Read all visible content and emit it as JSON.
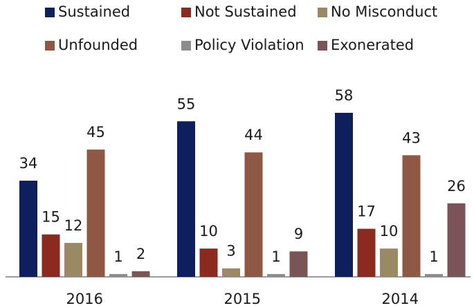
{
  "chart_data": {
    "type": "bar",
    "categories": [
      "2016",
      "2015",
      "2014"
    ],
    "series": [
      {
        "name": "Sustained",
        "color": "#0d1f5c",
        "values": [
          34,
          55,
          58
        ]
      },
      {
        "name": "Not Sustained",
        "color": "#8c2a1e",
        "values": [
          15,
          10,
          17
        ]
      },
      {
        "name": "No Misconduct",
        "color": "#9b8864",
        "values": [
          12,
          3,
          10
        ]
      },
      {
        "name": "Unfounded",
        "color": "#8f5845",
        "values": [
          45,
          44,
          43
        ]
      },
      {
        "name": "Policy Violation",
        "color": "#8e8b8b",
        "values": [
          1,
          1,
          1
        ]
      },
      {
        "name": "Exonerated",
        "color": "#7b5458",
        "values": [
          2,
          9,
          26
        ]
      }
    ]
  }
}
